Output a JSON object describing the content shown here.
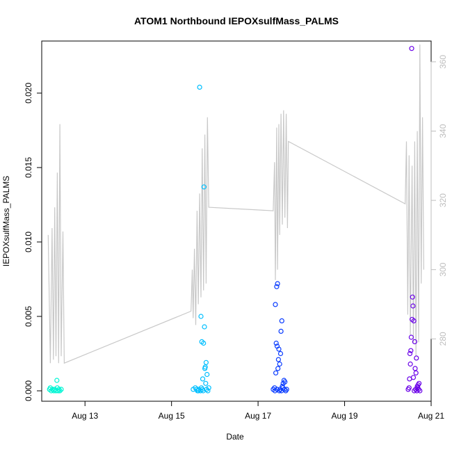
{
  "chart_data": {
    "type": "scatter",
    "title": "ATOM1 Northbound IEPOXsulfMass_PALMS",
    "xlabel": "Date",
    "ylabel": "IEPOXsulfMass_PALMS",
    "xlim_days": [
      12.0,
      21.0
    ],
    "ylim": [
      -0.0007,
      0.0235
    ],
    "y_ticks": [
      0.0,
      0.005,
      0.01,
      0.015,
      0.02
    ],
    "y_tick_labels": [
      "0.000",
      "0.005",
      "0.010",
      "0.015",
      "0.020"
    ],
    "x_ticks": [
      13,
      15,
      17,
      19,
      21
    ],
    "x_tick_labels": [
      "Aug 13",
      "Aug 15",
      "Aug 17",
      "Aug 19",
      "Aug 21"
    ],
    "y2_lim": [
      262,
      366
    ],
    "y2_ticks": [
      280,
      300,
      320,
      340,
      360
    ],
    "y2_tick_labels": [
      "280",
      "300",
      "320",
      "340",
      "360"
    ],
    "grid": false,
    "colors": {
      "flight1": "#00f5d4",
      "flight2": "#00bfff",
      "flight3": "#0a3cff",
      "flight4": "#6a00e8",
      "secondary_line": "#c8c8c8",
      "secondary_axis": "#bdbdbd"
    },
    "series": [
      {
        "color_key": "flight1",
        "points": [
          [
            12.18,
            0.0001
          ],
          [
            12.2,
            0.0002
          ],
          [
            12.22,
            0.0
          ],
          [
            12.25,
            0.0001
          ],
          [
            12.28,
            0.0
          ],
          [
            12.3,
            0.0001
          ],
          [
            12.33,
            0.0
          ],
          [
            12.36,
            0.0002
          ],
          [
            12.38,
            0.0
          ],
          [
            12.4,
            0.0001
          ],
          [
            12.42,
            0.0
          ],
          [
            12.45,
            0.0001
          ],
          [
            12.35,
            0.0007
          ]
        ]
      },
      {
        "color_key": "flight2",
        "points": [
          [
            15.65,
            0.0204
          ],
          [
            15.75,
            0.0137
          ],
          [
            15.68,
            0.005
          ],
          [
            15.76,
            0.0043
          ],
          [
            15.7,
            0.0033
          ],
          [
            15.74,
            0.0032
          ],
          [
            15.8,
            0.0019
          ],
          [
            15.78,
            0.0016
          ],
          [
            15.77,
            0.0015
          ],
          [
            15.82,
            0.0011
          ],
          [
            15.72,
            0.0008
          ],
          [
            15.79,
            0.0005
          ],
          [
            15.5,
            0.0001
          ],
          [
            15.55,
            0.0002
          ],
          [
            15.6,
            0.0
          ],
          [
            15.63,
            0.0001
          ],
          [
            15.67,
            0.0
          ],
          [
            15.71,
            0.0001
          ],
          [
            15.73,
            0.0
          ],
          [
            15.81,
            0.0001
          ],
          [
            15.84,
            0.0
          ],
          [
            15.86,
            0.0002
          ],
          [
            15.58,
            0.0001
          ],
          [
            15.62,
            0.0
          ],
          [
            15.69,
            0.0002
          ]
        ]
      },
      {
        "color_key": "flight3",
        "points": [
          [
            17.45,
            0.0072
          ],
          [
            17.43,
            0.007
          ],
          [
            17.4,
            0.0058
          ],
          [
            17.55,
            0.0047
          ],
          [
            17.53,
            0.004
          ],
          [
            17.42,
            0.0032
          ],
          [
            17.44,
            0.003
          ],
          [
            17.48,
            0.0028
          ],
          [
            17.52,
            0.0025
          ],
          [
            17.47,
            0.0021
          ],
          [
            17.5,
            0.0018
          ],
          [
            17.46,
            0.0015
          ],
          [
            17.41,
            0.0012
          ],
          [
            17.6,
            0.0007
          ],
          [
            17.58,
            0.0005
          ],
          [
            17.62,
            0.0006
          ],
          [
            17.35,
            0.0001
          ],
          [
            17.38,
            0.0002
          ],
          [
            17.39,
            0.0
          ],
          [
            17.51,
            0.0001
          ],
          [
            17.54,
            0.0
          ],
          [
            17.57,
            0.0002
          ],
          [
            17.61,
            0.0001
          ],
          [
            17.64,
            0.0
          ],
          [
            17.66,
            0.0001
          ],
          [
            17.49,
            0.0
          ],
          [
            17.56,
            0.0003
          ],
          [
            17.44,
            0.0001
          ]
        ]
      },
      {
        "color_key": "flight4",
        "points": [
          [
            20.55,
            0.023
          ],
          [
            20.57,
            0.0063
          ],
          [
            20.58,
            0.0057
          ],
          [
            20.56,
            0.0048
          ],
          [
            20.6,
            0.0047
          ],
          [
            20.54,
            0.0036
          ],
          [
            20.62,
            0.0033
          ],
          [
            20.53,
            0.0027
          ],
          [
            20.66,
            0.0022
          ],
          [
            20.51,
            0.0025
          ],
          [
            20.52,
            0.0018
          ],
          [
            20.63,
            0.0015
          ],
          [
            20.65,
            0.0012
          ],
          [
            20.59,
            0.0009
          ],
          [
            20.72,
            0.0005
          ],
          [
            20.7,
            0.0004
          ],
          [
            20.47,
            0.0001
          ],
          [
            20.49,
            0.0002
          ],
          [
            20.61,
            0.0
          ],
          [
            20.64,
            0.0001
          ],
          [
            20.67,
            0.0
          ],
          [
            20.69,
            0.0002
          ],
          [
            20.71,
            0.0001
          ],
          [
            20.74,
            0.0
          ],
          [
            20.5,
            0.0008
          ],
          [
            20.68,
            0.0003
          ]
        ]
      }
    ],
    "secondary_series": {
      "axis": "right",
      "points": [
        [
          12.15,
          310
        ],
        [
          12.2,
          273
        ],
        [
          12.24,
          312
        ],
        [
          12.27,
          274
        ],
        [
          12.3,
          318
        ],
        [
          12.33,
          275
        ],
        [
          12.36,
          328
        ],
        [
          12.39,
          273
        ],
        [
          12.42,
          342
        ],
        [
          12.45,
          275
        ],
        [
          12.49,
          311
        ],
        [
          12.52,
          273
        ],
        [
          15.45,
          288
        ],
        [
          15.48,
          300
        ],
        [
          15.5,
          286
        ],
        [
          15.53,
          306
        ],
        [
          15.56,
          284
        ],
        [
          15.59,
          317
        ],
        [
          15.62,
          290
        ],
        [
          15.65,
          322
        ],
        [
          15.68,
          292
        ],
        [
          15.71,
          335
        ],
        [
          15.74,
          294
        ],
        [
          15.77,
          339
        ],
        [
          15.8,
          296
        ],
        [
          15.83,
          344
        ],
        [
          15.86,
          318
        ],
        [
          17.35,
          317
        ],
        [
          17.38,
          331
        ],
        [
          17.4,
          297
        ],
        [
          17.43,
          341
        ],
        [
          17.45,
          300
        ],
        [
          17.48,
          342
        ],
        [
          17.5,
          310
        ],
        [
          17.53,
          345
        ],
        [
          17.56,
          313
        ],
        [
          17.59,
          346
        ],
        [
          17.62,
          315
        ],
        [
          17.65,
          345
        ],
        [
          17.68,
          312
        ],
        [
          17.7,
          337
        ],
        [
          20.4,
          319
        ],
        [
          20.43,
          337
        ],
        [
          20.46,
          287
        ],
        [
          20.49,
          333
        ],
        [
          20.52,
          281
        ],
        [
          20.56,
          330
        ],
        [
          20.59,
          279
        ],
        [
          20.62,
          337
        ],
        [
          20.65,
          275
        ],
        [
          20.68,
          340
        ],
        [
          20.71,
          279
        ],
        [
          20.74,
          365
        ],
        [
          20.77,
          296
        ],
        [
          20.8,
          344
        ],
        [
          20.83,
          300
        ]
      ]
    }
  }
}
